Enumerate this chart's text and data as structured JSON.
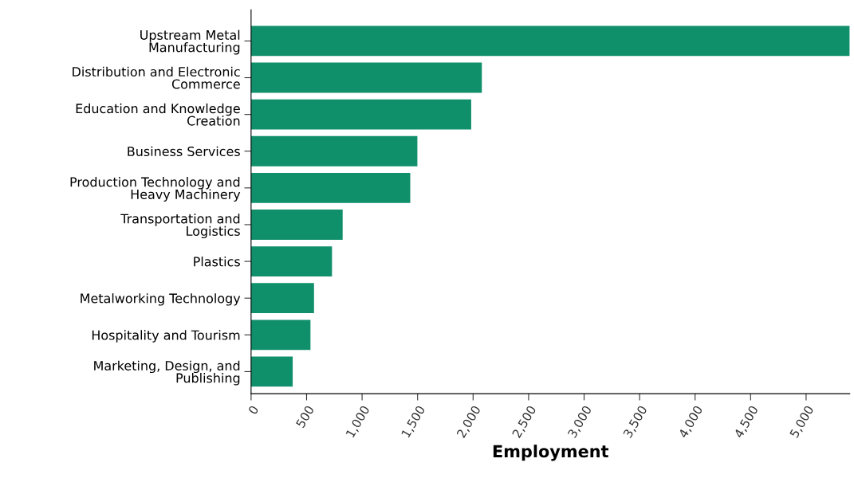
{
  "chart_data": {
    "type": "bar",
    "orientation": "horizontal",
    "xlabel": "Employment",
    "categories": [
      "Upstream Metal Manufacturing",
      "Distribution and Electronic Commerce",
      "Education and Knowledge Creation",
      "Business Services",
      "Production Technology and Heavy Machinery",
      "Transportation and Logistics",
      "Plastics",
      "Metalworking Technology",
      "Hospitality and Tourism",
      "Marketing, Design, and Publishing"
    ],
    "values": [
      5393,
      2079,
      1983,
      1498,
      1434,
      825,
      729,
      567,
      535,
      375
    ],
    "color": "#108f6b",
    "xlim": [
      0,
      5393
    ],
    "xticks": [
      0,
      {
        "value": 500,
        "label": "500"
      },
      {
        "value": 1000,
        "label": "1,000"
      },
      {
        "value": 1500,
        "label": "1,500"
      },
      {
        "value": 2000,
        "label": "2,000"
      },
      {
        "value": 2500,
        "label": "2,500"
      },
      {
        "value": 3000,
        "label": "3,000"
      },
      {
        "value": 3500,
        "label": "3,500"
      },
      {
        "value": 4000,
        "label": "4,000"
      },
      {
        "value": 4500,
        "label": "4,500"
      },
      {
        "value": 5000,
        "label": "5,000"
      }
    ],
    "grid": false
  }
}
